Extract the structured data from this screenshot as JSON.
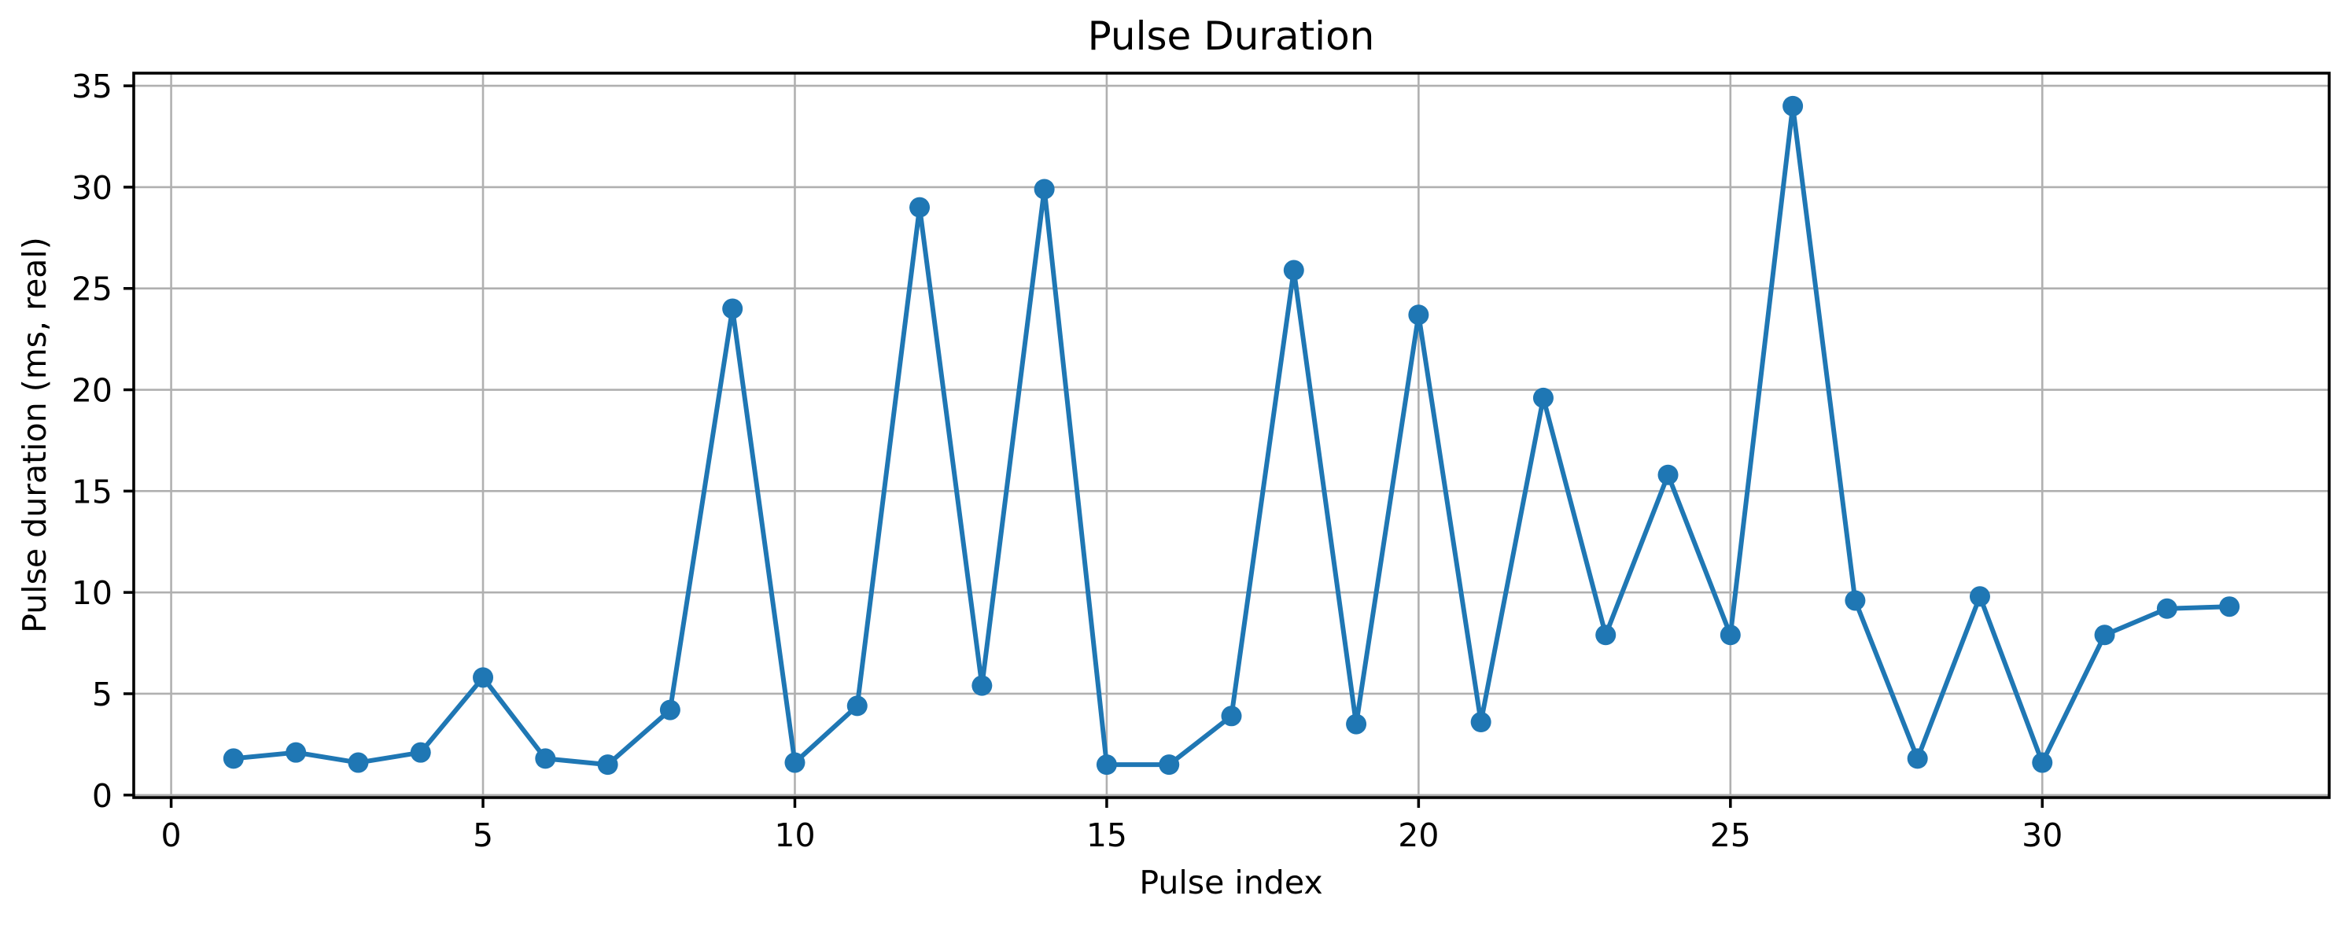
{
  "figure": {
    "title": "Pulse Duration",
    "background_color": "#ffffff"
  },
  "chart_data": {
    "type": "line",
    "title": "Pulse Duration",
    "xlabel": "Pulse index",
    "ylabel": "Pulse duration (ms, real)",
    "x": [
      1,
      2,
      3,
      4,
      5,
      6,
      7,
      8,
      9,
      10,
      11,
      12,
      13,
      14,
      15,
      16,
      17,
      18,
      19,
      20,
      21,
      22,
      23,
      24,
      25,
      26,
      27,
      28,
      29,
      30,
      31,
      32,
      33
    ],
    "y": [
      1.8,
      2.1,
      1.6,
      2.1,
      5.8,
      1.8,
      1.5,
      4.2,
      24.0,
      1.6,
      4.4,
      29.0,
      5.4,
      29.9,
      1.5,
      1.5,
      3.9,
      25.9,
      3.5,
      23.7,
      3.6,
      19.6,
      7.9,
      15.8,
      7.9,
      34.0,
      9.6,
      1.8,
      9.8,
      1.6,
      7.9,
      9.2,
      9.3
    ],
    "xlim": [
      -0.6,
      34.6
    ],
    "ylim": [
      -0.125,
      35.625
    ],
    "xticks": [
      0,
      5,
      10,
      15,
      20,
      25,
      30
    ],
    "yticks": [
      0,
      5,
      10,
      15,
      20,
      25,
      30,
      35
    ],
    "grid": true,
    "legend": "none",
    "line_color": "#1f77b4",
    "marker": "circle",
    "marker_color": "#1f77b4",
    "grid_color": "#b0b0b0",
    "spine_color": "#000000",
    "tick_label_color": "#000000"
  }
}
